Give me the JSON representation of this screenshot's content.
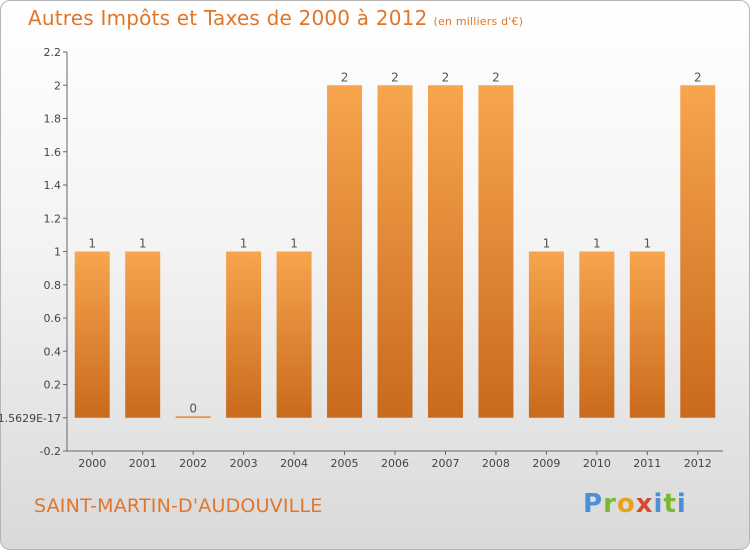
{
  "title": "Autres Impôts et Taxes de 2000 à 2012",
  "unit": "(en milliers d'€)",
  "commune": "SAINT-MARTIN-D'AUDOUVILLE",
  "logo": {
    "p": "P",
    "r": "r",
    "o": "o",
    "x": "x",
    "i": "i",
    "t": "t",
    "i2": "i"
  },
  "colors": {
    "bar_light": "#f7a54e",
    "bar_dark": "#c96a1c",
    "text": "#e0762a",
    "axis": "#555555"
  },
  "chart_data": {
    "type": "bar",
    "categories": [
      "2000",
      "2001",
      "2002",
      "2003",
      "2004",
      "2005",
      "2006",
      "2007",
      "2008",
      "2009",
      "2010",
      "2011",
      "2012"
    ],
    "values": [
      1,
      1,
      0,
      1,
      1,
      2,
      2,
      2,
      2,
      1,
      1,
      1,
      2
    ],
    "data_labels": [
      "1",
      "1",
      "0",
      "1",
      "1",
      "2",
      "2",
      "2",
      "2",
      "1",
      "1",
      "1",
      "2"
    ],
    "yticks": [
      -0.2,
      0,
      0.2,
      0.4,
      0.6,
      0.8,
      1,
      1.2,
      1.4,
      1.6,
      1.8,
      2,
      2.2
    ],
    "ytick_labels": [
      "-0.2",
      "-1.5629E-17",
      "0.2",
      "0.4",
      "0.6",
      "0.8",
      "1",
      "1.2",
      "1.4",
      "1.6",
      "1.8",
      "2",
      "2.2"
    ],
    "ylim": [
      -0.2,
      2.2
    ],
    "grid": false,
    "title": "Autres Impôts et Taxes de 2000 à 2012",
    "xlabel": "",
    "ylabel": ""
  }
}
